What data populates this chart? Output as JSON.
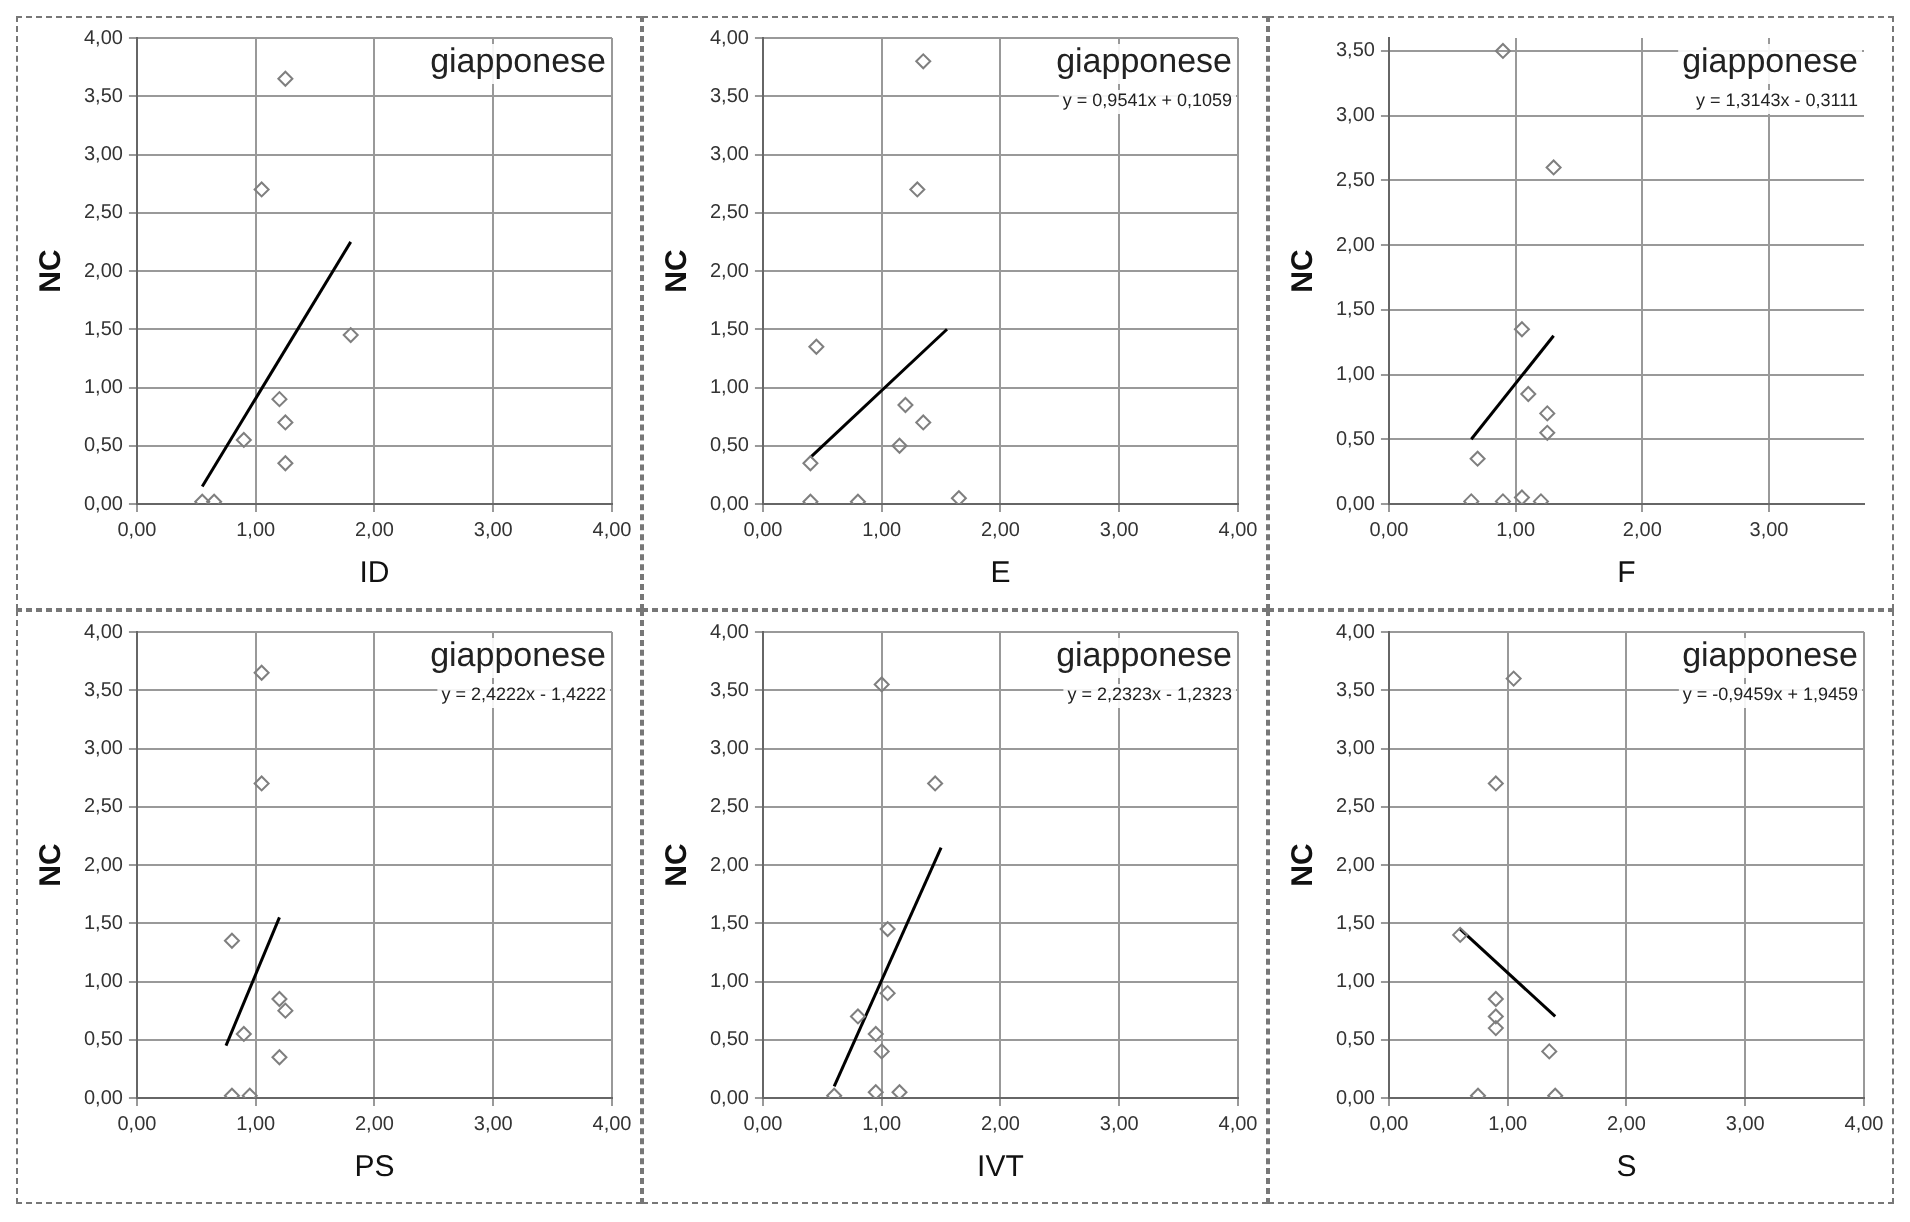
{
  "chart_data": [
    {
      "type": "scatter",
      "xlabel": "ID",
      "ylabel": "NC",
      "xlim": [
        0,
        4
      ],
      "xticks": [
        {
          "value": 0,
          "label": "0,00"
        },
        {
          "value": 1,
          "label": "1,00"
        },
        {
          "value": 2,
          "label": "2,00"
        },
        {
          "value": 3,
          "label": "3,00"
        },
        {
          "value": 4,
          "label": "4,00"
        }
      ],
      "ylim": [
        0,
        4
      ],
      "yticks": [
        {
          "value": 0,
          "label": "0,00"
        },
        {
          "value": 0.5,
          "label": "0,50"
        },
        {
          "value": 1,
          "label": "1,00"
        },
        {
          "value": 1.5,
          "label": "1,50"
        },
        {
          "value": 2,
          "label": "2,00"
        },
        {
          "value": 2.5,
          "label": "2,50"
        },
        {
          "value": 3,
          "label": "3,00"
        },
        {
          "value": 3.5,
          "label": "3,50"
        },
        {
          "value": 4,
          "label": "4,00"
        }
      ],
      "grid": true,
      "annotations": [
        "giapponese"
      ],
      "series": [
        {
          "color": "#7f7f7f",
          "marker": "diamond",
          "x": [
            1.25,
            1.05,
            1.8,
            1.2,
            1.25,
            0.9,
            1.25,
            0.55,
            0.65
          ],
          "values": [
            3.65,
            2.7,
            1.45,
            0.9,
            0.7,
            0.55,
            0.35,
            0.02,
            0.02
          ]
        },
        {
          "type": "line",
          "marker": "none",
          "color": "#000000",
          "x": [
            0.55,
            1.8
          ],
          "values": [
            0.15,
            2.25
          ]
        }
      ]
    },
    {
      "type": "scatter",
      "xlabel": "E",
      "ylabel": "NC",
      "xlim": [
        0,
        4
      ],
      "xticks": [
        {
          "value": 0,
          "label": "0,00"
        },
        {
          "value": 1,
          "label": "1,00"
        },
        {
          "value": 2,
          "label": "2,00"
        },
        {
          "value": 3,
          "label": "3,00"
        },
        {
          "value": 4,
          "label": "4,00"
        }
      ],
      "ylim": [
        0,
        4
      ],
      "yticks": [
        {
          "value": 0,
          "label": "0,00"
        },
        {
          "value": 0.5,
          "label": "0,50"
        },
        {
          "value": 1,
          "label": "1,00"
        },
        {
          "value": 1.5,
          "label": "1,50"
        },
        {
          "value": 2,
          "label": "2,00"
        },
        {
          "value": 2.5,
          "label": "2,50"
        },
        {
          "value": 3,
          "label": "3,00"
        },
        {
          "value": 3.5,
          "label": "3,50"
        },
        {
          "value": 4,
          "label": "4,00"
        }
      ],
      "grid": true,
      "annotations": [
        "giapponese",
        "y = 0,9541x + 0,1059"
      ],
      "series": [
        {
          "color": "#7f7f7f",
          "marker": "diamond",
          "x": [
            1.35,
            1.3,
            0.45,
            1.2,
            1.35,
            1.15,
            0.4,
            0.4,
            0.8,
            1.65
          ],
          "values": [
            3.8,
            2.7,
            1.35,
            0.85,
            0.7,
            0.5,
            0.35,
            0.02,
            0.02,
            0.05
          ]
        },
        {
          "type": "line",
          "marker": "none",
          "color": "#000000",
          "x": [
            0.4,
            1.55
          ],
          "values": [
            0.4,
            1.5
          ]
        }
      ]
    },
    {
      "type": "scatter",
      "xlabel": "F",
      "ylabel": "NC",
      "xlim": [
        0,
        3.75
      ],
      "xticks": [
        {
          "value": 0,
          "label": "0,00"
        },
        {
          "value": 1,
          "label": "1,00"
        },
        {
          "value": 2,
          "label": "2,00"
        },
        {
          "value": 3,
          "label": "3,00"
        }
      ],
      "ylim": [
        0,
        3.6
      ],
      "yticks": [
        {
          "value": 0,
          "label": "0,00"
        },
        {
          "value": 0.5,
          "label": "0,50"
        },
        {
          "value": 1,
          "label": "1,00"
        },
        {
          "value": 1.5,
          "label": "1,50"
        },
        {
          "value": 2,
          "label": "2,00"
        },
        {
          "value": 2.5,
          "label": "2,50"
        },
        {
          "value": 3,
          "label": "3,00"
        },
        {
          "value": 3.5,
          "label": "3,50"
        }
      ],
      "grid": true,
      "annotations": [
        "giapponese",
        "y = 1,3143x - 0,3111"
      ],
      "series": [
        {
          "color": "#7f7f7f",
          "marker": "diamond",
          "x": [
            0.9,
            1.3,
            1.05,
            1.1,
            1.25,
            1.25,
            0.7,
            0.65,
            0.9,
            1.05,
            1.2
          ],
          "values": [
            3.5,
            2.6,
            1.35,
            0.85,
            0.7,
            0.55,
            0.35,
            0.02,
            0.02,
            0.05,
            0.02
          ]
        },
        {
          "type": "line",
          "marker": "none",
          "color": "#000000",
          "x": [
            0.65,
            1.3
          ],
          "values": [
            0.5,
            1.3
          ]
        }
      ]
    },
    {
      "type": "scatter",
      "xlabel": "PS",
      "ylabel": "NC",
      "xlim": [
        0,
        4
      ],
      "xticks": [
        {
          "value": 0,
          "label": "0,00"
        },
        {
          "value": 1,
          "label": "1,00"
        },
        {
          "value": 2,
          "label": "2,00"
        },
        {
          "value": 3,
          "label": "3,00"
        },
        {
          "value": 4,
          "label": "4,00"
        }
      ],
      "ylim": [
        0,
        4
      ],
      "yticks": [
        {
          "value": 0,
          "label": "0,00"
        },
        {
          "value": 0.5,
          "label": "0,50"
        },
        {
          "value": 1,
          "label": "1,00"
        },
        {
          "value": 1.5,
          "label": "1,50"
        },
        {
          "value": 2,
          "label": "2,00"
        },
        {
          "value": 2.5,
          "label": "2,50"
        },
        {
          "value": 3,
          "label": "3,00"
        },
        {
          "value": 3.5,
          "label": "3,50"
        },
        {
          "value": 4,
          "label": "4,00"
        }
      ],
      "grid": true,
      "annotations": [
        "giapponese",
        "y = 2,4222x - 1,4222"
      ],
      "series": [
        {
          "color": "#7f7f7f",
          "marker": "diamond",
          "x": [
            1.05,
            1.05,
            0.8,
            1.2,
            1.25,
            0.9,
            1.2,
            0.8,
            0.95
          ],
          "values": [
            3.65,
            2.7,
            1.35,
            0.85,
            0.75,
            0.55,
            0.35,
            0.02,
            0.02
          ]
        },
        {
          "type": "line",
          "marker": "none",
          "color": "#000000",
          "x": [
            0.75,
            1.2
          ],
          "values": [
            0.45,
            1.55
          ]
        }
      ]
    },
    {
      "type": "scatter",
      "xlabel": "IVT",
      "ylabel": "NC",
      "xlim": [
        0,
        4
      ],
      "xticks": [
        {
          "value": 0,
          "label": "0,00"
        },
        {
          "value": 1,
          "label": "1,00"
        },
        {
          "value": 2,
          "label": "2,00"
        },
        {
          "value": 3,
          "label": "3,00"
        },
        {
          "value": 4,
          "label": "4,00"
        }
      ],
      "ylim": [
        0,
        4
      ],
      "yticks": [
        {
          "value": 0,
          "label": "0,00"
        },
        {
          "value": 0.5,
          "label": "0,50"
        },
        {
          "value": 1,
          "label": "1,00"
        },
        {
          "value": 1.5,
          "label": "1,50"
        },
        {
          "value": 2,
          "label": "2,00"
        },
        {
          "value": 2.5,
          "label": "2,50"
        },
        {
          "value": 3,
          "label": "3,00"
        },
        {
          "value": 3.5,
          "label": "3,50"
        },
        {
          "value": 4,
          "label": "4,00"
        }
      ],
      "grid": true,
      "annotations": [
        "giapponese",
        "y = 2,2323x - 1,2323"
      ],
      "series": [
        {
          "color": "#7f7f7f",
          "marker": "diamond",
          "x": [
            1.0,
            1.45,
            1.05,
            1.05,
            0.8,
            0.95,
            1.0,
            0.6,
            0.95,
            1.15
          ],
          "values": [
            3.55,
            2.7,
            1.45,
            0.9,
            0.7,
            0.55,
            0.4,
            0.02,
            0.05,
            0.05
          ]
        },
        {
          "type": "line",
          "marker": "none",
          "color": "#000000",
          "x": [
            0.6,
            1.5
          ],
          "values": [
            0.1,
            2.15
          ]
        }
      ]
    },
    {
      "type": "scatter",
      "xlabel": "S",
      "ylabel": "NC",
      "xlim": [
        0,
        4
      ],
      "xticks": [
        {
          "value": 0,
          "label": "0,00"
        },
        {
          "value": 1,
          "label": "1,00"
        },
        {
          "value": 2,
          "label": "2,00"
        },
        {
          "value": 3,
          "label": "3,00"
        },
        {
          "value": 4,
          "label": "4,00"
        }
      ],
      "ylim": [
        0,
        4
      ],
      "yticks": [
        {
          "value": 0,
          "label": "0,00"
        },
        {
          "value": 0.5,
          "label": "0,50"
        },
        {
          "value": 1,
          "label": "1,00"
        },
        {
          "value": 1.5,
          "label": "1,50"
        },
        {
          "value": 2,
          "label": "2,00"
        },
        {
          "value": 2.5,
          "label": "2,50"
        },
        {
          "value": 3,
          "label": "3,00"
        },
        {
          "value": 3.5,
          "label": "3,50"
        },
        {
          "value": 4,
          "label": "4,00"
        }
      ],
      "grid": true,
      "annotations": [
        "giapponese",
        "y = -0,9459x + 1,9459"
      ],
      "series": [
        {
          "color": "#7f7f7f",
          "marker": "diamond",
          "x": [
            1.05,
            0.9,
            0.6,
            0.9,
            0.9,
            0.9,
            1.35,
            0.75,
            1.4
          ],
          "values": [
            3.6,
            2.7,
            1.4,
            0.85,
            0.7,
            0.6,
            0.4,
            0.02,
            0.02
          ]
        },
        {
          "type": "line",
          "marker": "none",
          "color": "#000000",
          "x": [
            0.6,
            1.4
          ],
          "values": [
            1.45,
            0.7
          ]
        }
      ]
    }
  ]
}
